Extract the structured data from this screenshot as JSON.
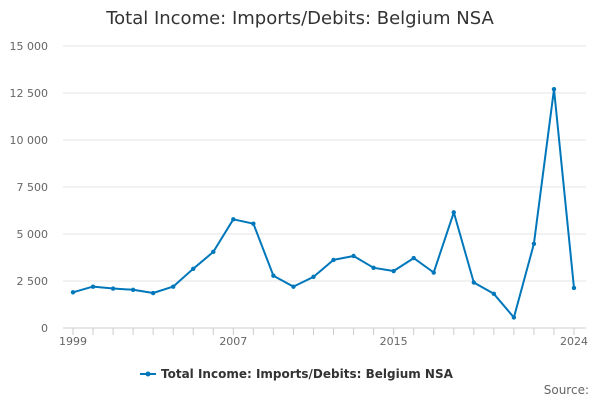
{
  "chart_data": {
    "type": "line",
    "title": "Total Income: Imports/Debits: Belgium NSA",
    "xlabel": "",
    "ylabel": "",
    "ylim": [
      0,
      15000
    ],
    "y_ticks": [
      0,
      2500,
      5000,
      7500,
      10000,
      12500,
      15000
    ],
    "y_tick_labels": [
      "0",
      "2 500",
      "5 000",
      "7 500",
      "10 000",
      "12 500",
      "15 000"
    ],
    "x_tick_labels": [
      "1999",
      "2007",
      "2015",
      "2024"
    ],
    "x_tick_values": [
      1999,
      2007,
      2015,
      2024
    ],
    "grid": "horizontal",
    "legend_position": "bottom",
    "series": [
      {
        "name": "Total Income: Imports/Debits: Belgium NSA",
        "color": "#0077bb",
        "x": [
          1999,
          2000,
          2001,
          2002,
          2003,
          2004,
          2005,
          2006,
          2007,
          2008,
          2009,
          2010,
          2011,
          2012,
          2013,
          2014,
          2015,
          2016,
          2017,
          2018,
          2019,
          2020,
          2021,
          2022,
          2023,
          2024
        ],
        "values": [
          1900,
          2200,
          2100,
          2030,
          1860,
          2200,
          3150,
          4050,
          5780,
          5550,
          2780,
          2200,
          2720,
          3620,
          3830,
          3200,
          3030,
          3720,
          2950,
          6150,
          2420,
          1820,
          560,
          4480,
          12700,
          2130
        ]
      }
    ]
  },
  "source_label": "Source:"
}
